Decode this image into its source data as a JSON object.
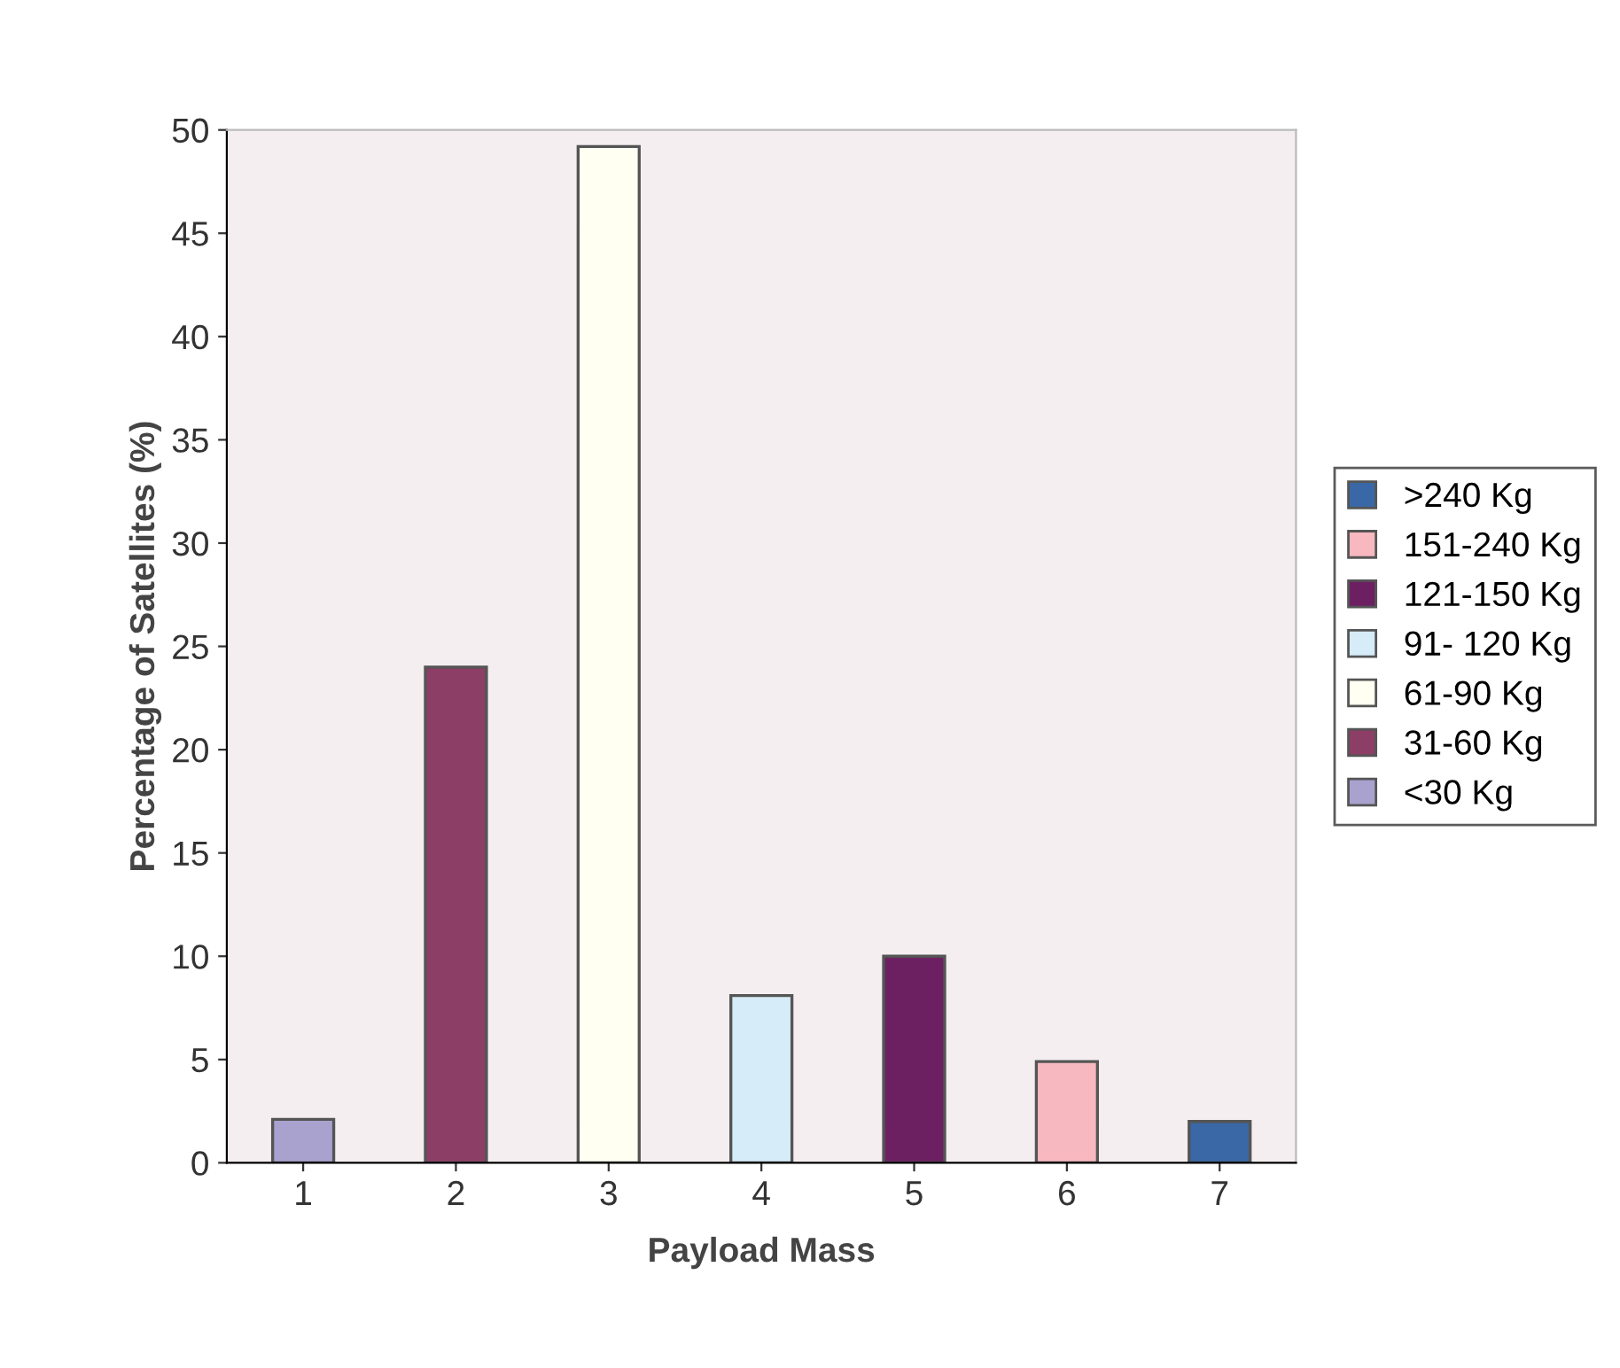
{
  "chart_data": {
    "type": "bar",
    "xlabel": "Payload Mass",
    "ylabel": "Percentage of Satellites (%)",
    "categories": [
      "1",
      "2",
      "3",
      "4",
      "5",
      "6",
      "7"
    ],
    "series": [
      {
        "name": "<30 Kg",
        "color": "#a9a2cf",
        "values": [
          2.1,
          null,
          null,
          null,
          null,
          null,
          null
        ]
      },
      {
        "name": "31-60 Kg",
        "color": "#8c3e66",
        "values": [
          null,
          24,
          null,
          null,
          null,
          null,
          null
        ]
      },
      {
        "name": "61-90 Kg",
        "color": "#fffff2",
        "values": [
          null,
          null,
          49.2,
          null,
          null,
          null,
          null
        ]
      },
      {
        "name": "91- 120 Kg",
        "color": "#d6ecf8",
        "values": [
          null,
          null,
          null,
          8.1,
          null,
          null,
          null
        ]
      },
      {
        "name": "121-150 Kg",
        "color": "#6c2062",
        "values": [
          null,
          null,
          null,
          null,
          10,
          null,
          null
        ]
      },
      {
        "name": "151-240 Kg",
        "color": "#f8b8c0",
        "values": [
          null,
          null,
          null,
          null,
          null,
          4.9,
          null
        ]
      },
      {
        "name": ">240 Kg",
        "color": "#3a68a6",
        "values": [
          null,
          null,
          null,
          null,
          null,
          null,
          2.0
        ]
      }
    ],
    "ylim": [
      0,
      50
    ],
    "yticks": [
      0,
      5,
      10,
      15,
      20,
      25,
      30,
      35,
      40,
      45,
      50
    ],
    "grid": false,
    "legend": "right"
  }
}
